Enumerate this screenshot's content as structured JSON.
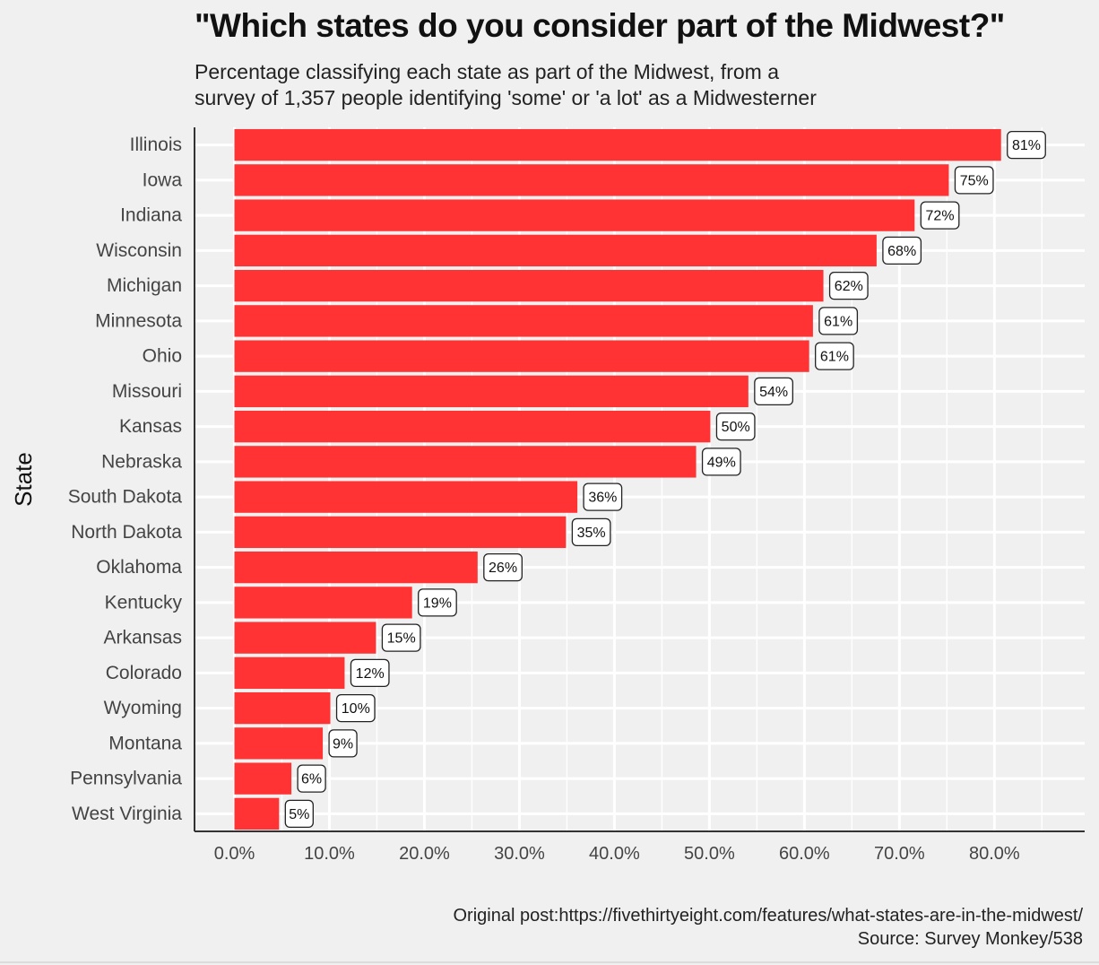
{
  "chart_data": {
    "type": "bar",
    "orientation": "horizontal",
    "title": "\"Which states do you consider part of the Midwest?\"",
    "subtitle": [
      "Percentage classifying each state as part of the Midwest, from a",
      "survey of 1,357 people identifying 'some' or 'a lot' as a Midwesterner"
    ],
    "ylabel": "State",
    "xlabel": "",
    "categories": [
      "Illinois",
      "Iowa",
      "Indiana",
      "Wisconsin",
      "Michigan",
      "Minnesota",
      "Ohio",
      "Missouri",
      "Kansas",
      "Nebraska",
      "South Dakota",
      "North Dakota",
      "Oklahoma",
      "Kentucky",
      "Arkansas",
      "Colorado",
      "Wyoming",
      "Montana",
      "Pennsylvania",
      "West Virginia"
    ],
    "values": [
      80.7,
      75.2,
      71.6,
      67.6,
      62.0,
      60.9,
      60.5,
      54.1,
      50.1,
      48.6,
      36.1,
      34.9,
      25.6,
      18.7,
      14.9,
      11.6,
      10.1,
      9.3,
      6.0,
      4.7
    ],
    "data_labels": [
      "81%",
      "75%",
      "72%",
      "68%",
      "62%",
      "61%",
      "61%",
      "54%",
      "50%",
      "49%",
      "36%",
      "35%",
      "26%",
      "19%",
      "15%",
      "12%",
      "10%",
      "9%",
      "6%",
      "5%"
    ],
    "xticks": [
      "0.0%",
      "10.0%",
      "20.0%",
      "30.0%",
      "40.0%",
      "50.0%",
      "60.0%",
      "70.0%",
      "80.0%"
    ],
    "xlim": [
      -4.2,
      89.5
    ],
    "grid": true,
    "bar_color": "#ff3333",
    "caption": [
      "Original post:https://fivethirtyeight.com/features/what-states-are-in-the-midwest/",
      "Source: Survey Monkey/538"
    ]
  }
}
